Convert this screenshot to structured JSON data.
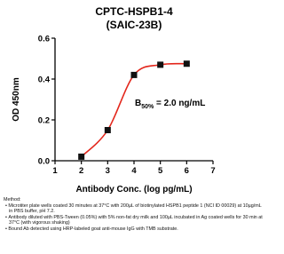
{
  "chart_data": {
    "type": "line",
    "title": [
      "CPTC-HSPB1-4",
      "(SAIC-23B)"
    ],
    "x_label": "Antibody Conc. (log pg/mL)",
    "y_label": "OD 450nm",
    "x": [
      2,
      3,
      4,
      5,
      6
    ],
    "values": [
      0.02,
      0.15,
      0.42,
      0.47,
      0.475
    ],
    "line_color": "#e3261b",
    "marker_color": "#111111",
    "xlim": [
      1,
      7
    ],
    "xticks": [
      1,
      2,
      3,
      4,
      5,
      6,
      7
    ],
    "ylim": [
      0,
      0.6
    ],
    "yticks": [
      {
        "value": 0,
        "label": "0.0"
      },
      0.2,
      0.4,
      0.6
    ],
    "annotation": {
      "main": "B",
      "sub": "50%",
      "rest": " = 2.0 ng/mL"
    }
  },
  "method": {
    "heading": "Method:",
    "items": [
      "Microtiter plate wells coated 30 minutes at 37°C with 200µL of biotinylated HSPB1 peptide 1 (NCI ID 00029) at 10µg/mL in PBS buffer, pH 7.2.",
      "Antibody diluted with PBS-Tween (0.05%) with 5% non-fat dry milk and 100µL incubated in Ag coated wells for 30 min at 37°C (with vigorous shaking)",
      "Bound Ab detected using HRP-labeled goat anti-mouse IgG with TMB substrate."
    ]
  }
}
